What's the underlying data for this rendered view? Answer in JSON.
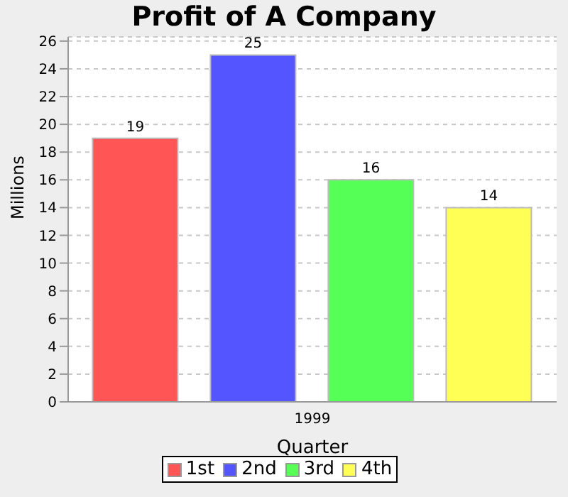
{
  "chart_data": {
    "type": "bar",
    "title": "Profit of A Company",
    "xlabel": "Quarter",
    "ylabel": "Millions",
    "categories": [
      "1999"
    ],
    "series": [
      {
        "name": "1st",
        "color": "#ff5555",
        "values": [
          19
        ]
      },
      {
        "name": "2nd",
        "color": "#5555ff",
        "values": [
          25
        ]
      },
      {
        "name": "3rd",
        "color": "#55ff55",
        "values": [
          16
        ]
      },
      {
        "name": "4th",
        "color": "#ffff55",
        "values": [
          14
        ]
      }
    ],
    "ylim": [
      0,
      26.3
    ],
    "yticks": [
      0,
      2,
      4,
      6,
      8,
      10,
      12,
      14,
      16,
      18,
      20,
      22,
      24,
      26
    ],
    "grid": "y",
    "legend": "bottom",
    "data_labels": true
  }
}
